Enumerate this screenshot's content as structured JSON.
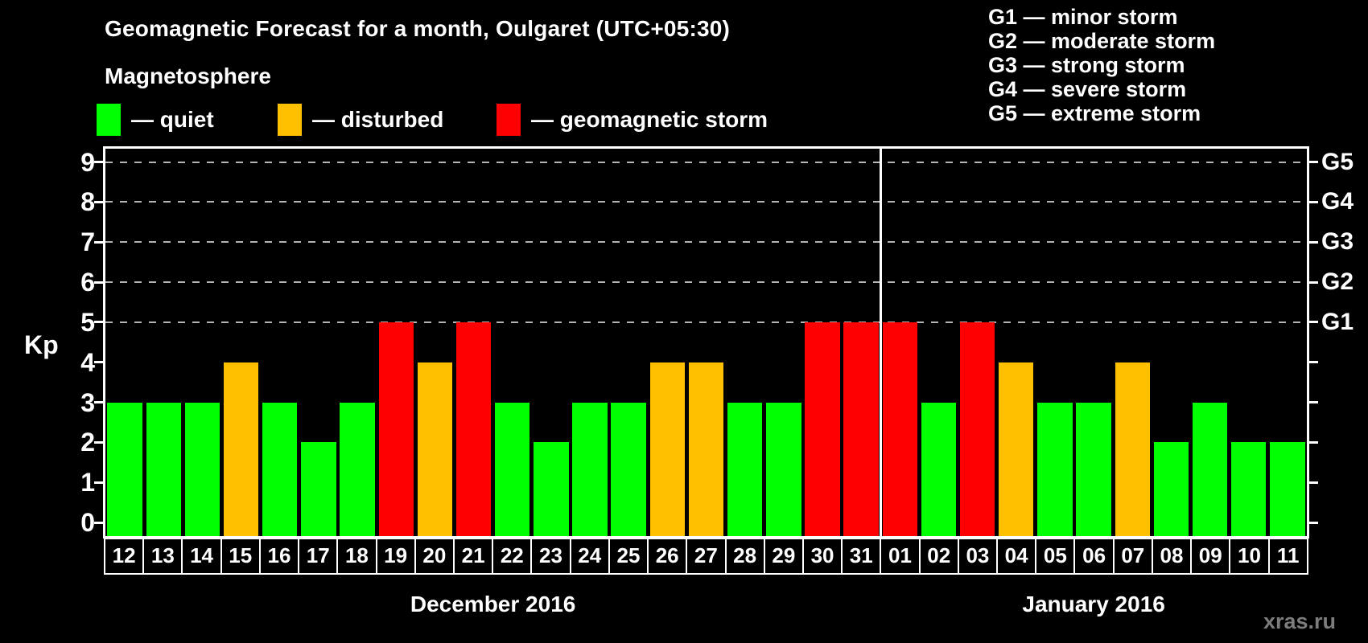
{
  "title": "Geomagnetic Forecast for a month, Oulgaret (UTC+05:30)",
  "subtitle": "Magnetosphere",
  "legend": {
    "items": [
      {
        "key": "quiet",
        "label": "— quiet",
        "color": "#00ff00"
      },
      {
        "key": "disturbed",
        "label": "— disturbed",
        "color": "#ffc000"
      },
      {
        "key": "storm",
        "label": "— geomagnetic storm",
        "color": "#ff0000"
      }
    ]
  },
  "g_scale_legend": [
    "G1 — minor storm",
    "G2 — moderate storm",
    "G3 — strong storm",
    "G4 — severe storm",
    "G5 — extreme storm"
  ],
  "watermark": "xras.ru",
  "chart_data": {
    "type": "bar",
    "title": "Geomagnetic Forecast for a month, Oulgaret (UTC+05:30)",
    "ylabel": "Kp",
    "ylim": [
      0,
      9
    ],
    "yticks": [
      0,
      1,
      2,
      3,
      4,
      5,
      6,
      7,
      8,
      9
    ],
    "gridlines_at": [
      5,
      6,
      7,
      8,
      9
    ],
    "grid": "dashed horizontal lines at Kp 5-9 only",
    "legend_position": "top-left",
    "right_axis_labels": [
      {
        "value": 5,
        "label": "G1"
      },
      {
        "value": 6,
        "label": "G2"
      },
      {
        "value": 7,
        "label": "G3"
      },
      {
        "value": 8,
        "label": "G4"
      },
      {
        "value": 9,
        "label": "G5"
      }
    ],
    "months": [
      {
        "label": "December 2016",
        "days": 20
      },
      {
        "label": "January 2016",
        "days": 11
      }
    ],
    "categories": [
      "12",
      "13",
      "14",
      "15",
      "16",
      "17",
      "18",
      "19",
      "20",
      "21",
      "22",
      "23",
      "24",
      "25",
      "26",
      "27",
      "28",
      "29",
      "30",
      "31",
      "01",
      "02",
      "03",
      "04",
      "05",
      "06",
      "07",
      "08",
      "09",
      "10",
      "11"
    ],
    "values": [
      3,
      3,
      3,
      4,
      3,
      2,
      3,
      5,
      4,
      5,
      3,
      2,
      3,
      3,
      4,
      4,
      3,
      3,
      5,
      5,
      5,
      3,
      5,
      4,
      3,
      3,
      4,
      2,
      3,
      2,
      2
    ],
    "statuses": [
      "quiet",
      "quiet",
      "quiet",
      "disturbed",
      "quiet",
      "quiet",
      "quiet",
      "storm",
      "disturbed",
      "storm",
      "quiet",
      "quiet",
      "quiet",
      "quiet",
      "disturbed",
      "disturbed",
      "quiet",
      "quiet",
      "storm",
      "storm",
      "storm",
      "quiet",
      "storm",
      "disturbed",
      "quiet",
      "quiet",
      "disturbed",
      "quiet",
      "quiet",
      "quiet",
      "quiet"
    ],
    "status_colors": {
      "quiet": "#00ff00",
      "disturbed": "#ffc000",
      "storm": "#ff0000"
    }
  }
}
